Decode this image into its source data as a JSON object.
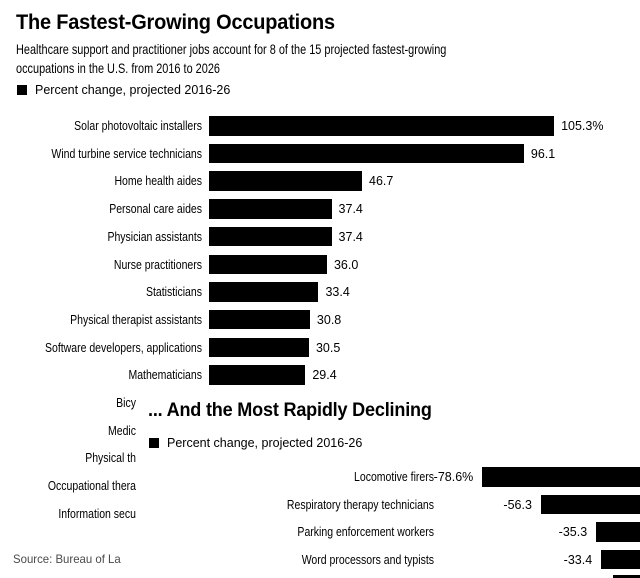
{
  "header": {
    "title": "The Fastest-Growing Occupations",
    "subtitle_line1": "Healthcare support and practitioner jobs account for 8 of the 15 projected fastest-growing",
    "subtitle_line2": "occupations in the U.S. from 2016 to 2026",
    "legend_label": "Percent change, projected 2016-26"
  },
  "overlay_panel": {
    "title": "... And the Most Rapidly Declining",
    "legend_label": "Percent change, projected 2016-26"
  },
  "source_text_fragment": "Source: Bureau of La",
  "colors": {
    "bar": "#000000",
    "background": "#ffffff",
    "text": "#000000",
    "source_text": "#4a4a4a"
  },
  "chart_data": [
    {
      "type": "bar",
      "orientation": "horizontal",
      "title": "The Fastest-Growing Occupations",
      "legend": "Percent change, projected 2016-26",
      "categories": [
        "Solar photovoltaic installers",
        "Wind turbine service technicians",
        "Home health aides",
        "Personal care aides",
        "Physician assistants",
        "Nurse practitioners",
        "Statisticians",
        "Physical therapist assistants",
        "Software developers, applications",
        "Mathematicians"
      ],
      "values": [
        105.3,
        96.1,
        46.7,
        37.4,
        37.4,
        36.0,
        33.4,
        30.8,
        30.5,
        29.4
      ],
      "value_labels": [
        "105.3%",
        "96.1",
        "46.7",
        "37.4",
        "37.4",
        "36.0",
        "33.4",
        "30.8",
        "30.5",
        "29.4"
      ],
      "truncated_category_fragments": [
        "Bicy",
        "Medic",
        "Physical th",
        "Occupational thera",
        "Information secu"
      ],
      "xlim": [
        0,
        120
      ],
      "grid": false,
      "legend_position": "top-left"
    },
    {
      "type": "bar",
      "orientation": "horizontal",
      "title": "... And the Most Rapidly Declining",
      "legend": "Percent change, projected 2016-26",
      "categories": [
        "Locomotive firers",
        "Respiratory therapy technicians",
        "Parking enforcement workers",
        "Word processors and typists",
        ""
      ],
      "values": [
        -78.6,
        -56.3,
        -35.3,
        -33.4,
        -28.9
      ],
      "value_labels": [
        "-78.6%",
        "-56.3",
        "-35.3",
        "-33.4",
        ""
      ],
      "note": "bars are right-anchored and clipped by the right image edge; fifth bar is an unlabeled sliver partially visible at the bottom edge (value estimated from bar length)",
      "grid": false,
      "legend_position": "top-left"
    }
  ]
}
